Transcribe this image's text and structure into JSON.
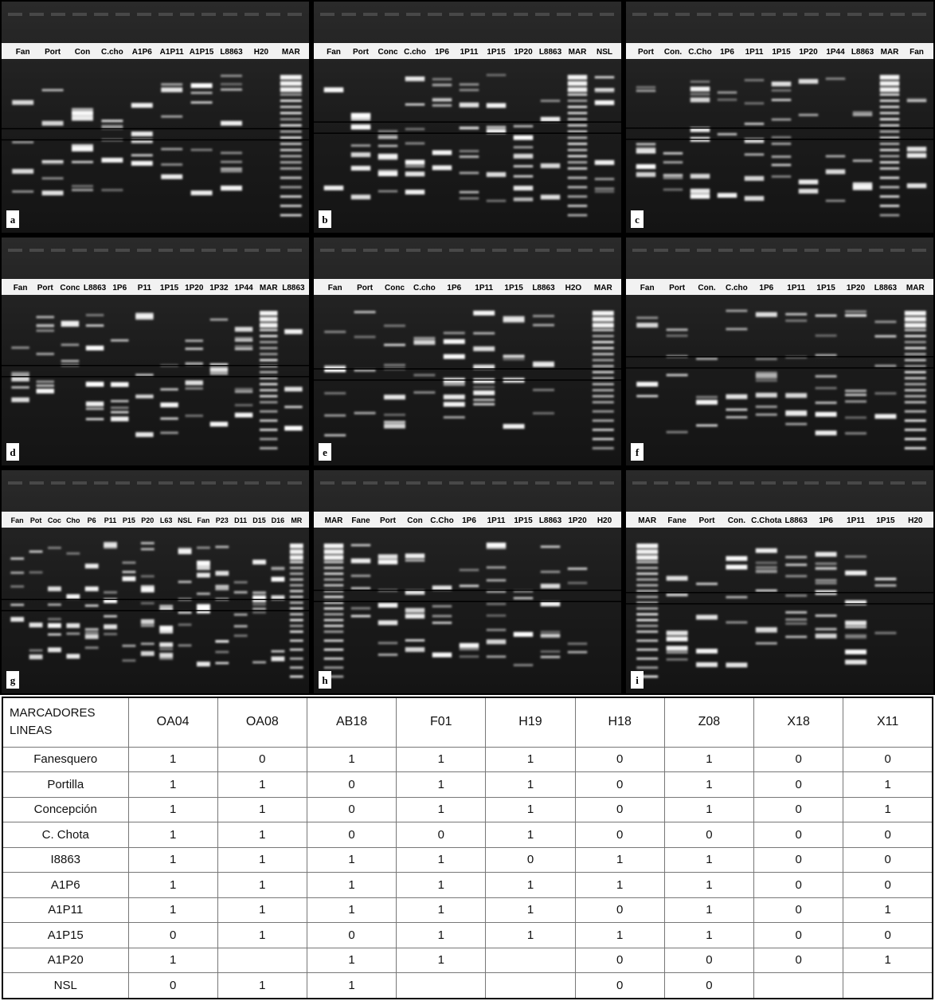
{
  "panels": [
    {
      "letter": "a",
      "lanes": [
        "Fan",
        "Port",
        "Con",
        "C.cho",
        "A1P6",
        "A1P11",
        "A1P15",
        "L8863",
        "H20",
        "MAR"
      ]
    },
    {
      "letter": "b",
      "lanes": [
        "Fan",
        "Port",
        "Conc",
        "C.cho",
        "1P6",
        "1P11",
        "1P15",
        "1P20",
        "L8863",
        "MAR",
        "NSL"
      ]
    },
    {
      "letter": "c",
      "lanes": [
        "Port",
        "Con.",
        "C.Cho",
        "1P6",
        "1P11",
        "1P15",
        "1P20",
        "1P44",
        "L8863",
        "MAR",
        "Fan"
      ]
    },
    {
      "letter": "d",
      "lanes": [
        "Fan",
        "Port",
        "Conc",
        "L8863",
        "1P6",
        "P11",
        "1P15",
        "1P20",
        "1P32",
        "1P44",
        "MAR",
        "L8863"
      ]
    },
    {
      "letter": "e",
      "lanes": [
        "Fan",
        "Port",
        "Conc",
        "C.cho",
        "1P6",
        "1P11",
        "1P15",
        "L8863",
        "H2O",
        "MAR"
      ]
    },
    {
      "letter": "f",
      "lanes": [
        "Fan",
        "Port",
        "Con.",
        "C.cho",
        "1P6",
        "1P11",
        "1P15",
        "1P20",
        "L8863",
        "MAR"
      ]
    },
    {
      "letter": "g",
      "lanes": [
        "Fan",
        "Pot",
        "Coc",
        "Cho",
        "P6",
        "P11",
        "P15",
        "P20",
        "L63",
        "NSL",
        "Fan",
        "P23",
        "D11",
        "D15",
        "D16",
        "MR"
      ]
    },
    {
      "letter": "h",
      "lanes": [
        "MAR",
        "Fane",
        "Port",
        "Con",
        "C.Cho",
        "1P6",
        "1P11",
        "1P15",
        "L8863",
        "1P20",
        "H20"
      ]
    },
    {
      "letter": "i",
      "lanes": [
        "MAR",
        "Fane",
        "Port",
        "Con.",
        "C.Chota",
        "L8863",
        "1P6",
        "1P11",
        "1P15",
        "H20"
      ]
    }
  ],
  "table": {
    "corner": [
      "MARCADORES",
      "LINEAS"
    ],
    "columns": [
      "OA04",
      "OA08",
      "AB18",
      "F01",
      "H19",
      "H18",
      "Z08",
      "X18",
      "X11"
    ],
    "rows": [
      {
        "name": "Fanesquero",
        "values": [
          1,
          0,
          1,
          1,
          1,
          0,
          1,
          0,
          0
        ]
      },
      {
        "name": "Portilla",
        "values": [
          1,
          1,
          0,
          1,
          1,
          0,
          1,
          0,
          1
        ]
      },
      {
        "name": "Concepción",
        "values": [
          1,
          1,
          0,
          1,
          1,
          0,
          1,
          0,
          1
        ]
      },
      {
        "name": "C. Chota",
        "values": [
          1,
          1,
          0,
          0,
          1,
          0,
          0,
          0,
          0
        ]
      },
      {
        "name": "I8863",
        "values": [
          1,
          1,
          1,
          1,
          0,
          1,
          1,
          0,
          0
        ]
      },
      {
        "name": "A1P6",
        "values": [
          1,
          1,
          1,
          1,
          1,
          1,
          1,
          0,
          0
        ]
      },
      {
        "name": "A1P11",
        "values": [
          1,
          1,
          1,
          1,
          1,
          0,
          1,
          0,
          1
        ]
      },
      {
        "name": "A1P15",
        "values": [
          0,
          1,
          0,
          1,
          1,
          1,
          1,
          0,
          0
        ]
      },
      {
        "name": "A1P20",
        "values": [
          1,
          null,
          1,
          1,
          null,
          0,
          0,
          0,
          1
        ]
      },
      {
        "name": "NSL",
        "values": [
          0,
          1,
          1,
          null,
          null,
          0,
          0,
          null,
          null
        ]
      }
    ]
  }
}
